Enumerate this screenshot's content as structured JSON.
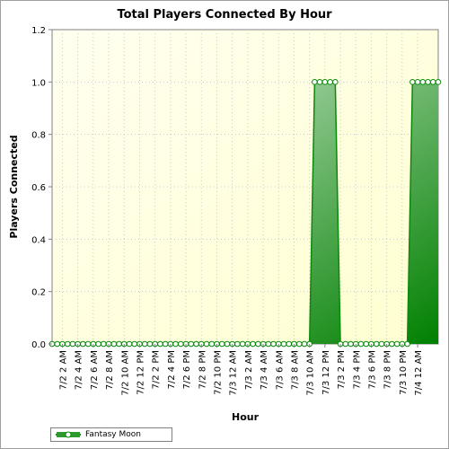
{
  "chart_data": {
    "type": "area",
    "title": "Total Players Connected By Hour",
    "xlabel": "Hour",
    "ylabel": "Players Connected",
    "ylim": [
      0,
      1.2
    ],
    "yticks": [
      "0.0",
      "0.2",
      "0.4",
      "0.6",
      "0.8",
      "1.0",
      "1.2"
    ],
    "x_tick_labels": [
      "7/2 2 AM",
      "7/2 4 AM",
      "7/2 6 AM",
      "7/2 8 AM",
      "7/2 10 AM",
      "7/2 12 PM",
      "7/2 2 PM",
      "7/2 4 PM",
      "7/2 6 PM",
      "7/2 8 PM",
      "7/2 10 PM",
      "7/3 12 AM",
      "7/3 2 AM",
      "7/3 4 AM",
      "7/3 6 AM",
      "7/3 8 AM",
      "7/3 10 AM",
      "7/3 12 PM",
      "7/3 2 PM",
      "7/3 4 PM",
      "7/3 6 PM",
      "7/3 8 PM",
      "7/3 10 PM",
      "7/4 12 AM"
    ],
    "grid": true,
    "legend_position": "bottom-left",
    "series": [
      {
        "name": "Fantasy Moon",
        "color": "#0a8a0a",
        "values": [
          0,
          0,
          0,
          0,
          0,
          0,
          0,
          0,
          0,
          0,
          0,
          0,
          0,
          0,
          0,
          0,
          0,
          0,
          0,
          0,
          0,
          0,
          0,
          0,
          0,
          0,
          0,
          0,
          0,
          0,
          0,
          0,
          0,
          0,
          0,
          0,
          0,
          0,
          0,
          0,
          0,
          0,
          0,
          0,
          0,
          0,
          0,
          0,
          0,
          0,
          0,
          1,
          1,
          1,
          1,
          1,
          0,
          0,
          0,
          0,
          0,
          0,
          0,
          0,
          0,
          0,
          0,
          0,
          0,
          0,
          1,
          1,
          1,
          1,
          1,
          1
        ]
      }
    ]
  }
}
